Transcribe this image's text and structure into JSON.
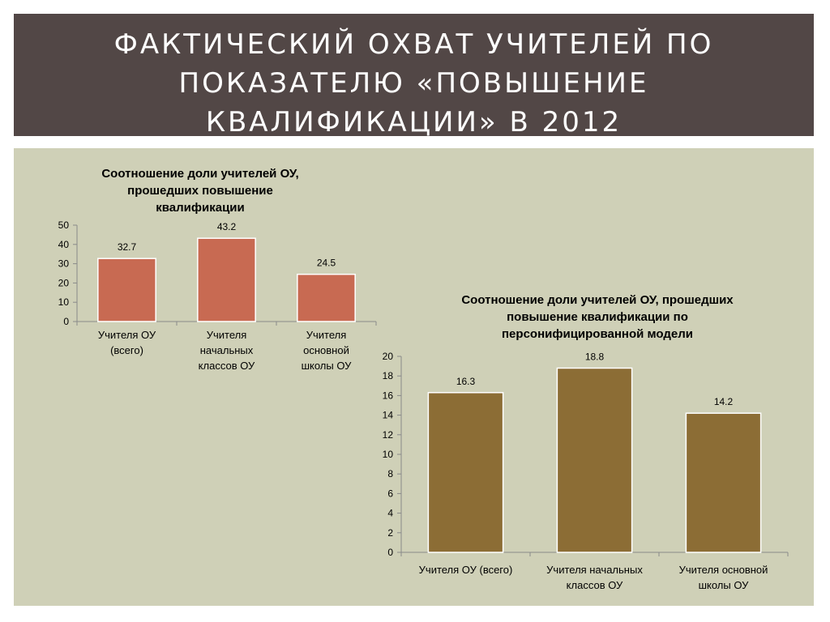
{
  "slide": {
    "title_lines": [
      "ФАКТИЧЕСКИЙ ОХВАТ УЧИТЕЛЕЙ ПО",
      "ПОКАЗАТЕЛЮ «ПОВЫШЕНИЕ",
      "КВАЛИФИКАЦИИ» В 2012"
    ]
  },
  "colors": {
    "title_bar": "#524746",
    "content_bg": "#cfd0b7",
    "chart1_bar": "#c86a52",
    "chart2_bar": "#8c6d35"
  },
  "chart_data": [
    {
      "type": "bar",
      "title_lines": [
        "Соотношение  доли учителей ОУ,",
        "прошедших повышение",
        "квалификации"
      ],
      "categories": [
        [
          "Учителя ОУ",
          "(всего)"
        ],
        [
          "Учителя",
          "начальных",
          "классов ОУ"
        ],
        [
          "Учителя",
          "основной",
          "школы ОУ"
        ]
      ],
      "values": [
        32.7,
        43.2,
        24.5
      ],
      "data_labels": [
        "32.7",
        "43.2",
        "24.5"
      ],
      "ylim": [
        0,
        50
      ],
      "yticks": [
        0,
        10,
        20,
        30,
        40,
        50
      ],
      "grid": false,
      "legend": "none"
    },
    {
      "type": "bar",
      "title_lines": [
        "Соотношение  доли учителей ОУ, прошедших",
        "повышение квалификации по",
        "персонифицированной модели"
      ],
      "categories": [
        [
          "Учителя ОУ (всего)"
        ],
        [
          "Учителя начальных",
          "классов ОУ"
        ],
        [
          "Учителя основной",
          "школы ОУ"
        ]
      ],
      "values": [
        16.3,
        18.8,
        14.2
      ],
      "data_labels": [
        "16.3",
        "18.8",
        "14.2"
      ],
      "ylim": [
        0,
        20
      ],
      "yticks": [
        0,
        2,
        4,
        6,
        8,
        10,
        12,
        14,
        16,
        18,
        20
      ],
      "grid": false,
      "legend": "none"
    }
  ]
}
